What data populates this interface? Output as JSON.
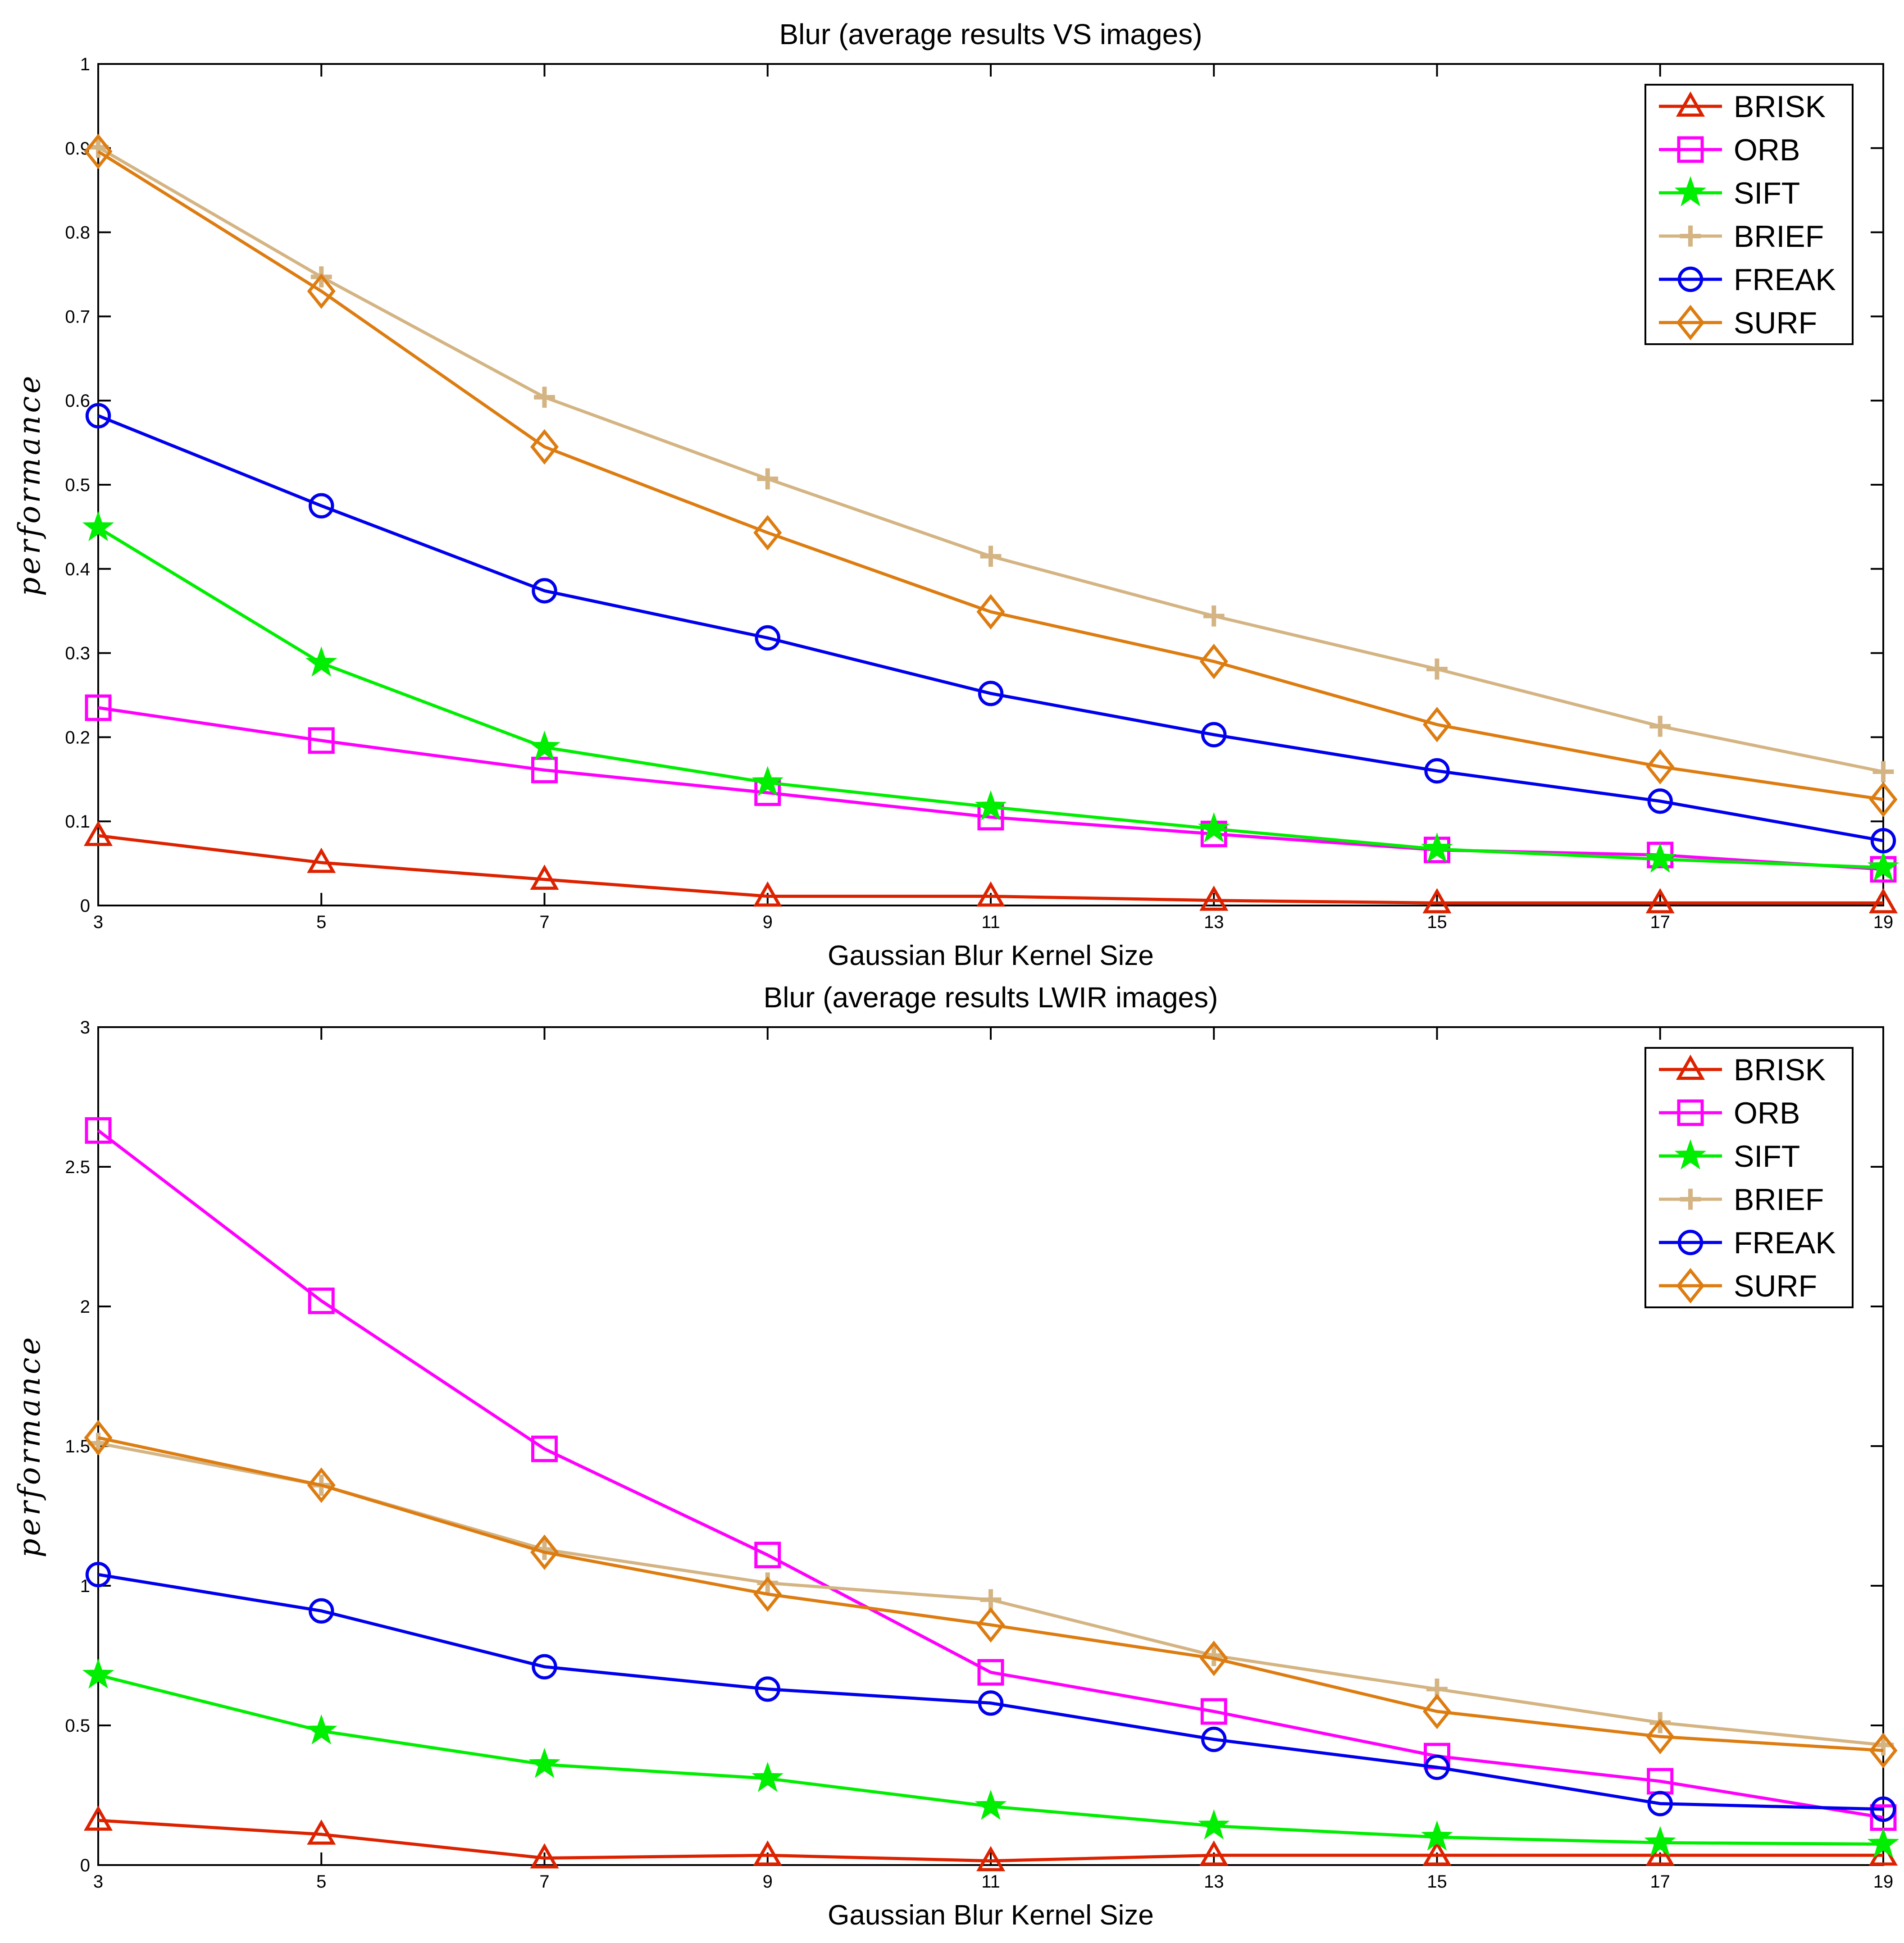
{
  "chart_data": [
    {
      "type": "line",
      "title": "Blur (average results VS images)",
      "xlabel": "Gaussian Blur Kernel Size",
      "ylabel": "performance",
      "x": [
        3,
        5,
        7,
        9,
        11,
        13,
        15,
        17,
        19
      ],
      "xticks": [
        "3",
        "5",
        "7",
        "9",
        "11",
        "13",
        "15",
        "17",
        "19"
      ],
      "yticks": [
        "0",
        "0.1",
        "0.2",
        "0.3",
        "0.4",
        "0.5",
        "0.6",
        "0.7",
        "0.8",
        "0.9",
        "1"
      ],
      "xlim": [
        3,
        19
      ],
      "ylim": [
        0,
        1
      ],
      "legend_position": "top-right",
      "series": [
        {
          "name": "BRISK",
          "color": "#dd2200",
          "marker": "triangle",
          "values": [
            0.083,
            0.051,
            0.031,
            0.011,
            0.011,
            0.006,
            0.003,
            0.003,
            0.003
          ]
        },
        {
          "name": "ORB",
          "color": "#ff00ff",
          "marker": "square",
          "values": [
            0.235,
            0.196,
            0.161,
            0.134,
            0.105,
            0.085,
            0.066,
            0.06,
            0.043
          ]
        },
        {
          "name": "SIFT",
          "color": "#00ee00",
          "marker": "star",
          "values": [
            0.449,
            0.288,
            0.188,
            0.146,
            0.117,
            0.091,
            0.067,
            0.055,
            0.045
          ]
        },
        {
          "name": "BRIEF",
          "color": "#d4b483",
          "marker": "plus",
          "values": [
            0.901,
            0.747,
            0.604,
            0.507,
            0.415,
            0.344,
            0.281,
            0.213,
            0.159
          ]
        },
        {
          "name": "FREAK",
          "color": "#0000ee",
          "marker": "circle",
          "values": [
            0.582,
            0.475,
            0.374,
            0.318,
            0.252,
            0.203,
            0.16,
            0.124,
            0.077
          ]
        },
        {
          "name": "SURF",
          "color": "#dd7c10",
          "marker": "diamond",
          "values": [
            0.896,
            0.73,
            0.545,
            0.443,
            0.349,
            0.29,
            0.215,
            0.165,
            0.126
          ]
        }
      ]
    },
    {
      "type": "line",
      "title": "Blur (average results LWIR images)",
      "xlabel": "Gaussian Blur Kernel Size",
      "ylabel": "performance",
      "x": [
        3,
        5,
        7,
        9,
        11,
        13,
        15,
        17,
        19
      ],
      "xticks": [
        "3",
        "5",
        "7",
        "9",
        "11",
        "13",
        "15",
        "17",
        "19"
      ],
      "yticks": [
        "0",
        "0.5",
        "1",
        "1.5",
        "2",
        "2.5",
        "3"
      ],
      "xlim": [
        3,
        19
      ],
      "ylim": [
        0,
        3
      ],
      "legend_position": "top-right",
      "series": [
        {
          "name": "BRISK",
          "color": "#dd2200",
          "marker": "triangle",
          "values": [
            0.16,
            0.11,
            0.025,
            0.035,
            0.015,
            0.035,
            0.035,
            0.035,
            0.035
          ]
        },
        {
          "name": "ORB",
          "color": "#ff00ff",
          "marker": "square",
          "values": [
            2.63,
            2.02,
            1.49,
            1.11,
            0.69,
            0.55,
            0.39,
            0.3,
            0.17
          ]
        },
        {
          "name": "SIFT",
          "color": "#00ee00",
          "marker": "star",
          "values": [
            0.68,
            0.48,
            0.36,
            0.31,
            0.21,
            0.14,
            0.1,
            0.08,
            0.075
          ]
        },
        {
          "name": "BRIEF",
          "color": "#d4b483",
          "marker": "plus",
          "values": [
            1.51,
            1.36,
            1.13,
            1.01,
            0.95,
            0.75,
            0.63,
            0.51,
            0.43
          ]
        },
        {
          "name": "FREAK",
          "color": "#0000ee",
          "marker": "circle",
          "values": [
            1.04,
            0.91,
            0.71,
            0.63,
            0.58,
            0.45,
            0.35,
            0.22,
            0.2
          ]
        },
        {
          "name": "SURF",
          "color": "#dd7c10",
          "marker": "diamond",
          "values": [
            1.53,
            1.36,
            1.12,
            0.97,
            0.86,
            0.74,
            0.55,
            0.46,
            0.41
          ]
        }
      ]
    }
  ]
}
